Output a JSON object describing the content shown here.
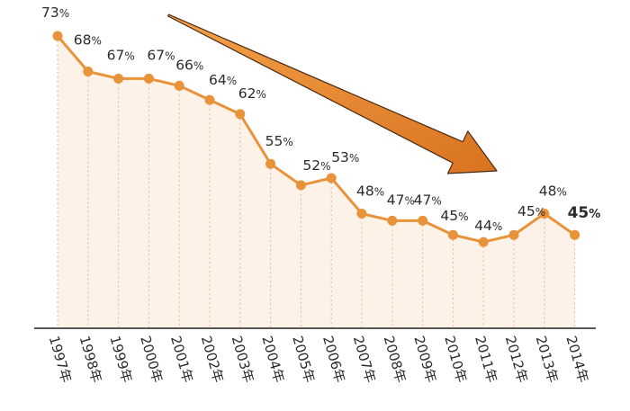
{
  "chart_data": {
    "type": "area",
    "categories": [
      "1997年",
      "1998年",
      "1999年",
      "2000年",
      "2001年",
      "2002年",
      "2003年",
      "2004年",
      "2005年",
      "2006年",
      "2007年",
      "2008年",
      "2009年",
      "2010年",
      "2011年",
      "2012年",
      "2013年",
      "2014年"
    ],
    "values": [
      73,
      68,
      67,
      67,
      66,
      64,
      62,
      55,
      52,
      53,
      48,
      47,
      47,
      45,
      44,
      45,
      48,
      45
    ],
    "value_labels": [
      "73%",
      "68%",
      "67%",
      "67%",
      "66%",
      "64%",
      "62%",
      "55%",
      "52%",
      "53%",
      "48%",
      "47%",
      "47%",
      "45%",
      "44%",
      "45%",
      "48%",
      "45%"
    ],
    "title": "",
    "xlabel": "",
    "ylabel": "",
    "ylim": [
      0,
      80
    ],
    "grid": false,
    "highlight_last": true,
    "trend_arrow": "downward",
    "colors": {
      "line": "#e8923a",
      "marker": "#e8923a",
      "fill": "#fdf2e8",
      "drop_line": "#f0b58a",
      "highlight_label": "#e8923a",
      "arrow": "#e5812a",
      "arrow_stroke": "#4a2a12",
      "axis": "#222222",
      "text": "#2b2b2b"
    }
  }
}
